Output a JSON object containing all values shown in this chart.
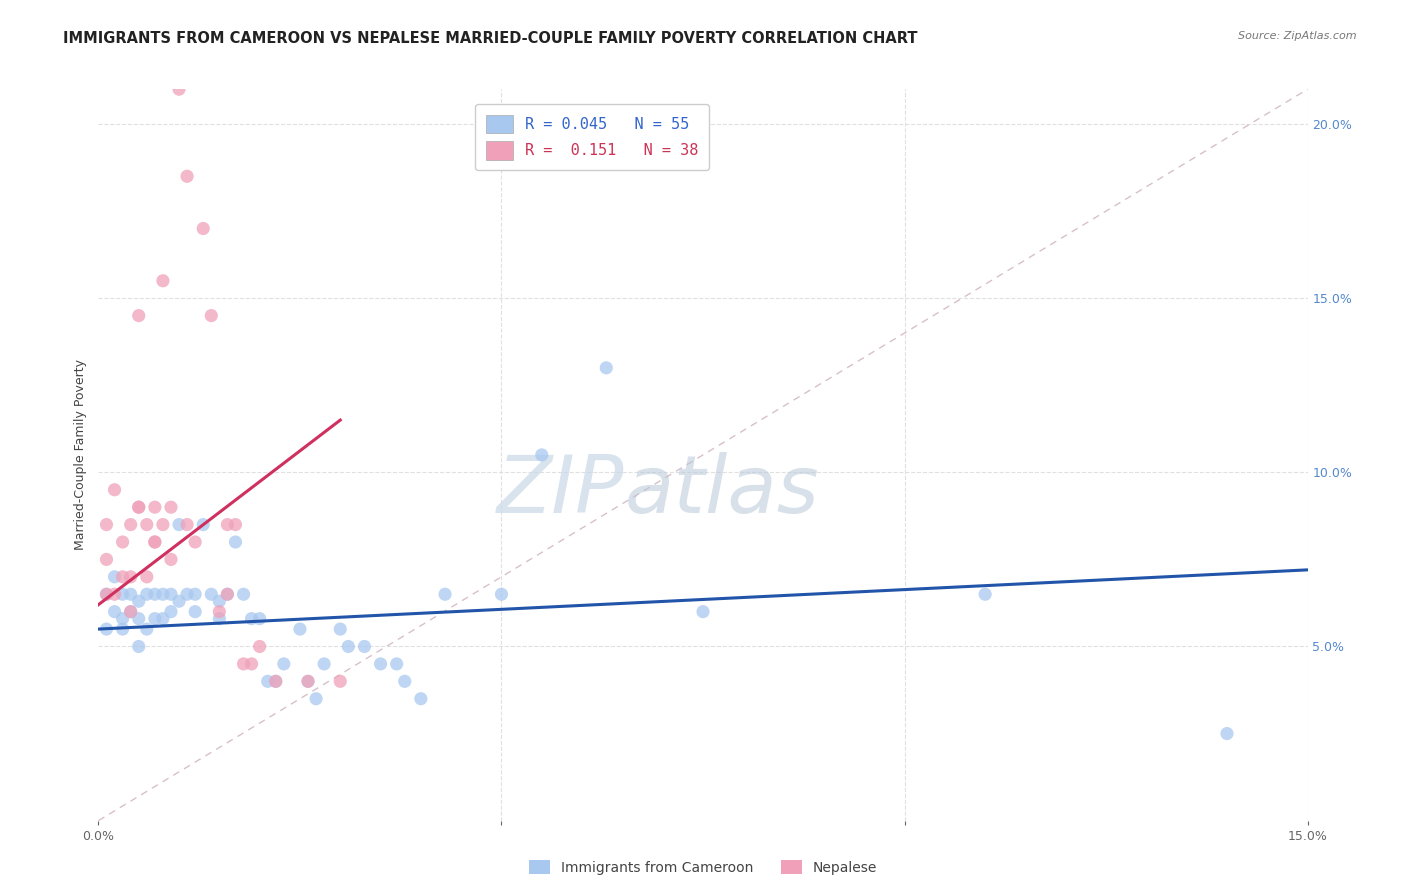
{
  "title": "IMMIGRANTS FROM CAMEROON VS NEPALESE MARRIED-COUPLE FAMILY POVERTY CORRELATION CHART",
  "source": "Source: ZipAtlas.com",
  "ylabel": "Married-Couple Family Poverty",
  "watermark": "ZIPatlas",
  "xlim": [
    0.0,
    0.15
  ],
  "ylim": [
    0.0,
    0.21
  ],
  "xticks": [
    0.0,
    0.05,
    0.1,
    0.15
  ],
  "xtick_labels": [
    "0.0%",
    "",
    "",
    "15.0%"
  ],
  "yticks_right": [
    0.05,
    0.1,
    0.15,
    0.2
  ],
  "ytick_labels_right": [
    "5.0%",
    "10.0%",
    "15.0%",
    "20.0%"
  ],
  "series_cameroon": {
    "color": "#A8C8F0",
    "trend_color": "#2255AA",
    "x": [
      0.001,
      0.001,
      0.002,
      0.002,
      0.003,
      0.003,
      0.003,
      0.004,
      0.004,
      0.005,
      0.005,
      0.005,
      0.006,
      0.006,
      0.007,
      0.007,
      0.008,
      0.008,
      0.009,
      0.009,
      0.01,
      0.01,
      0.011,
      0.012,
      0.012,
      0.013,
      0.014,
      0.015,
      0.015,
      0.016,
      0.017,
      0.018,
      0.019,
      0.02,
      0.021,
      0.022,
      0.023,
      0.025,
      0.026,
      0.027,
      0.028,
      0.03,
      0.031,
      0.033,
      0.035,
      0.037,
      0.038,
      0.04,
      0.043,
      0.05,
      0.055,
      0.063,
      0.075,
      0.11,
      0.14
    ],
    "y": [
      0.055,
      0.065,
      0.06,
      0.07,
      0.055,
      0.058,
      0.065,
      0.06,
      0.065,
      0.05,
      0.058,
      0.063,
      0.065,
      0.055,
      0.065,
      0.058,
      0.058,
      0.065,
      0.06,
      0.065,
      0.063,
      0.085,
      0.065,
      0.06,
      0.065,
      0.085,
      0.065,
      0.058,
      0.063,
      0.065,
      0.08,
      0.065,
      0.058,
      0.058,
      0.04,
      0.04,
      0.045,
      0.055,
      0.04,
      0.035,
      0.045,
      0.055,
      0.05,
      0.05,
      0.045,
      0.045,
      0.04,
      0.035,
      0.065,
      0.065,
      0.105,
      0.13,
      0.06,
      0.065,
      0.025
    ]
  },
  "series_nepalese": {
    "color": "#F0A0B8",
    "trend_color": "#D03060",
    "x": [
      0.001,
      0.001,
      0.001,
      0.002,
      0.002,
      0.003,
      0.003,
      0.004,
      0.004,
      0.004,
      0.005,
      0.005,
      0.005,
      0.006,
      0.006,
      0.007,
      0.007,
      0.007,
      0.008,
      0.008,
      0.009,
      0.009,
      0.01,
      0.011,
      0.011,
      0.012,
      0.013,
      0.014,
      0.015,
      0.016,
      0.016,
      0.017,
      0.018,
      0.019,
      0.02,
      0.022,
      0.026,
      0.03
    ],
    "y": [
      0.065,
      0.075,
      0.085,
      0.065,
      0.095,
      0.07,
      0.08,
      0.06,
      0.07,
      0.085,
      0.09,
      0.09,
      0.145,
      0.07,
      0.085,
      0.08,
      0.08,
      0.09,
      0.085,
      0.155,
      0.075,
      0.09,
      0.21,
      0.085,
      0.185,
      0.08,
      0.17,
      0.145,
      0.06,
      0.065,
      0.085,
      0.085,
      0.045,
      0.045,
      0.05,
      0.04,
      0.04,
      0.04
    ]
  },
  "background_color": "#FFFFFF",
  "grid_color": "#E0E0E0",
  "title_fontsize": 10.5,
  "axis_label_fontsize": 9,
  "tick_fontsize": 9,
  "legend_fontsize": 11
}
